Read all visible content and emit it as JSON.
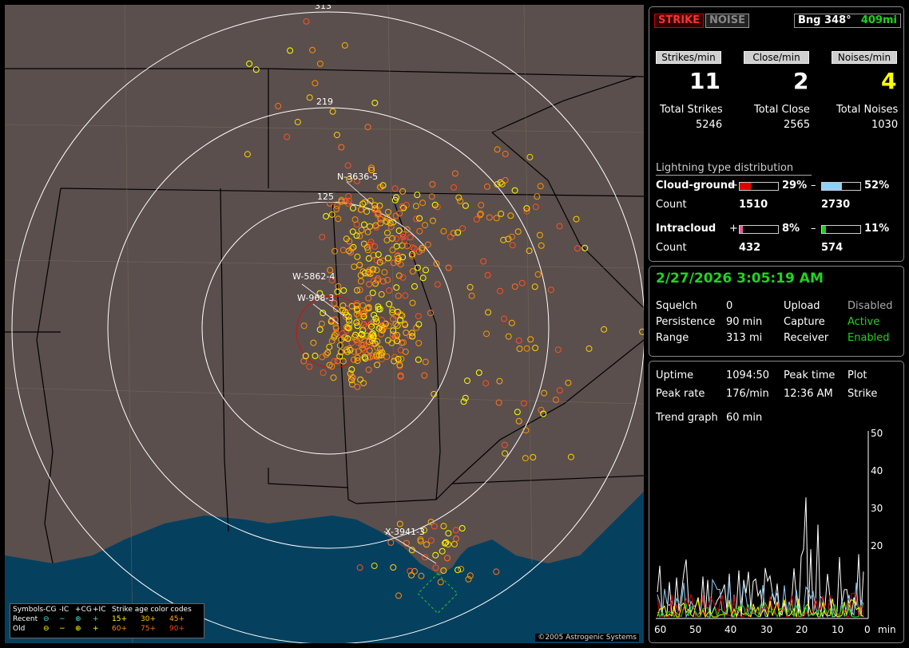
{
  "map": {
    "rings": [
      "313",
      "219",
      "125"
    ],
    "callouts": [
      "N-3636-5",
      "W-5862-4",
      "W-968-3",
      "X-3941-3"
    ],
    "copyright": "©2005 Astrogenic Systems",
    "legend": {
      "header": [
        "Symbols",
        "-CG",
        "-IC",
        "+CG",
        "+IC",
        "Strike age color codes"
      ],
      "recent_label": "Recent",
      "old_label": "Old",
      "recent_codes": [
        "15+",
        "30+",
        "45+"
      ],
      "old_codes": [
        "60+",
        "75+",
        "90+"
      ]
    }
  },
  "stats": {
    "strike_btn": "STRIKE",
    "noise_btn": "NOISE",
    "bearing": "Bng 348°",
    "bearing_dist": "409mi",
    "rate_labels": [
      "Strikes/min",
      "Close/min",
      "Noises/min"
    ],
    "rates": [
      "11",
      "2",
      "4"
    ],
    "total_labels": [
      "Total Strikes",
      "Total Close",
      "Total Noises"
    ],
    "totals": [
      "5246",
      "2565",
      "1030"
    ],
    "dist_title": "Lightning type distribution",
    "cg_label": "Cloud-ground",
    "ic_label": "Intracloud",
    "count_label": "Count",
    "plus": "+",
    "minus": "–",
    "cg_pos_pct": "29%",
    "cg_neg_pct": "52%",
    "ic_pos_pct": "8%",
    "ic_neg_pct": "11%",
    "cg_pos_count": "1510",
    "cg_neg_count": "2730",
    "ic_pos_count": "432",
    "ic_neg_count": "574",
    "cg_pos_frac": 0.29,
    "cg_neg_frac": 0.52,
    "ic_pos_frac": 0.08,
    "ic_neg_frac": 0.11
  },
  "status": {
    "datetime": "2/27/2026 3:05:19 AM",
    "squelch_label": "Squelch",
    "squelch": "0",
    "persistence_label": "Persistence",
    "persistence": "90 min",
    "range_label": "Range",
    "range": "313 mi",
    "upload_label": "Upload",
    "upload": "Disabled",
    "capture_label": "Capture",
    "capture": "Active",
    "receiver_label": "Receiver",
    "receiver": "Enabled"
  },
  "trend": {
    "uptime_label": "Uptime",
    "uptime": "1094:50",
    "peak_time_label": "Peak time",
    "peak_time": "12:36 AM",
    "plot_label": "Plot",
    "plot": "Strike",
    "peak_rate_label": "Peak rate",
    "peak_rate": "176/min",
    "graph_label": "Trend graph",
    "graph_period": "60 min",
    "y_ticks": [
      "50",
      "40",
      "30",
      "20"
    ],
    "x_ticks": [
      "60",
      "50",
      "40",
      "30",
      "20",
      "10",
      "0"
    ],
    "x_unit": "min"
  }
}
